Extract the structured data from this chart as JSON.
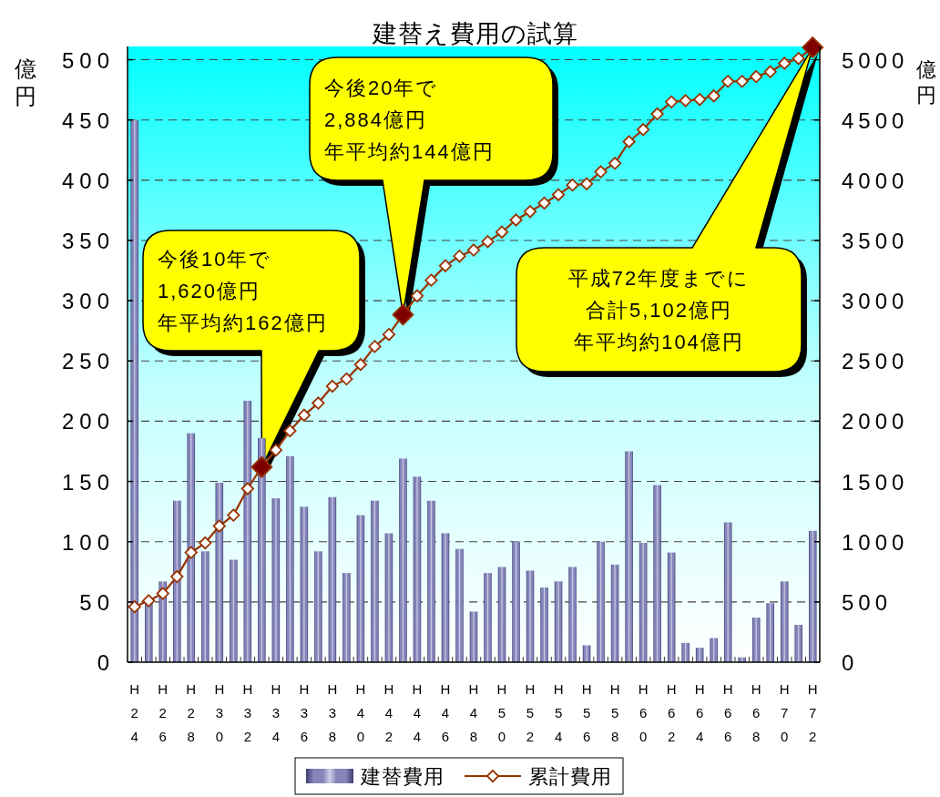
{
  "chart_data": {
    "type": "bar",
    "title": "建替え費用の試算",
    "ylabel": "億円",
    "y2label": "億円",
    "categories": [
      "H24",
      null,
      "H26",
      null,
      "H28",
      null,
      "H30",
      null,
      "H32",
      null,
      "H34",
      null,
      "H36",
      null,
      "H38",
      null,
      "H40",
      null,
      "H42",
      null,
      "H44",
      null,
      "H46",
      null,
      "H48",
      null,
      "H50",
      null,
      "H52",
      null,
      "H54",
      null,
      "H56",
      null,
      "H58",
      null,
      "H60",
      null,
      "H62",
      null,
      "H64",
      null,
      "H66",
      null,
      "H68",
      null,
      "H70",
      null,
      "H72"
    ],
    "series": [
      {
        "name": "建替費用",
        "color": "#8585bb",
        "values": [
          450,
          50,
          67,
          134,
          190,
          92,
          149,
          85,
          217,
          186,
          136,
          171,
          129,
          92,
          137,
          74,
          122,
          134,
          107,
          169,
          154,
          134,
          107,
          94,
          42,
          74,
          79,
          100,
          76,
          62,
          67,
          79,
          14,
          100,
          81,
          175,
          99,
          147,
          91,
          16,
          12,
          20,
          116,
          4,
          37,
          49,
          67,
          31,
          109
        ]
      },
      {
        "name": "累計費用",
        "type": "line",
        "axis": "y2",
        "color": "#993300",
        "values": [
          460,
          510,
          570,
          710,
          910,
          990,
          1130,
          1220,
          1440,
          1620,
          1760,
          1920,
          2050,
          2150,
          2290,
          2350,
          2470,
          2620,
          2720,
          2884,
          3040,
          3170,
          3290,
          3370,
          3420,
          3490,
          3570,
          3670,
          3740,
          3810,
          3880,
          3960,
          3970,
          4070,
          4140,
          4320,
          4420,
          4550,
          4650,
          4660,
          4670,
          4700,
          4820,
          4820,
          4860,
          4900,
          4970,
          5010,
          5102
        ],
        "colors": [
          "#ffffff",
          "#ffffff",
          "#ffffff",
          "#ffffff",
          "#ffffff",
          "#ffffff",
          "#ffffff",
          "#ffffff",
          "#ffffff",
          "#800000",
          "#ffffff",
          "#ffffff",
          "#ffffff",
          "#ffffff",
          "#ffffff",
          "#ffffff",
          "#ffffff",
          "#ffffff",
          "#ffffff",
          "#800000",
          "#ffffff",
          "#ffffff",
          "#ffffff",
          "#ffffff",
          "#ffffff",
          "#ffffff",
          "#ffffff",
          "#ffffff",
          "#ffffff",
          "#ffffff",
          "#ffffff",
          "#ffffff",
          "#ffffff",
          "#ffffff",
          "#ffffff",
          "#ffffff",
          "#ffffff",
          "#ffffff",
          "#ffffff",
          "#ffffff",
          "#ffffff",
          "#ffffff",
          "#ffffff",
          "#ffffff",
          "#ffffff",
          "#ffffff",
          "#ffffff",
          "#ffffff",
          "#800000"
        ]
      }
    ],
    "ylim": [
      0,
      511
    ],
    "yticks": [
      0,
      50,
      100,
      150,
      200,
      250,
      300,
      350,
      400,
      450,
      500
    ],
    "y2lim": [
      0,
      5110
    ],
    "y2ticks": [
      0,
      500,
      1000,
      1500,
      2000,
      2500,
      3000,
      3500,
      4000,
      4500,
      5000
    ],
    "grid": "y",
    "legend": "bottom",
    "marker": "diamond",
    "annotations": [
      "今後10年で1,620億円年平均約162億円",
      "今後20年で2,884億円年平均約144億円",
      "平成72年度までに合計5,102億円年平均約104億円"
    ]
  }
}
